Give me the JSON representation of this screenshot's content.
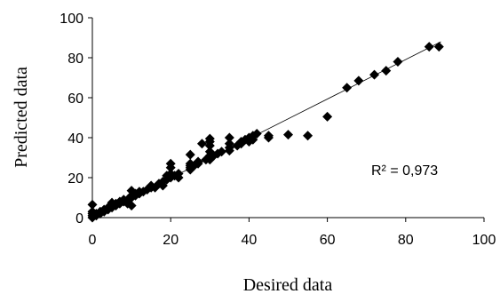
{
  "chart_data": {
    "type": "scatter",
    "xlabel": "Desired data",
    "ylabel": "Predicted data",
    "xlim": [
      0,
      100
    ],
    "ylim": [
      0,
      100
    ],
    "xticks": [
      0,
      20,
      40,
      60,
      80,
      100
    ],
    "yticks": [
      0,
      20,
      40,
      60,
      80,
      100
    ],
    "grid": false,
    "marker": "diamond",
    "marker_color": "#000000",
    "trendline": {
      "x": [
        0,
        89
      ],
      "y": [
        0,
        88
      ]
    },
    "annotation": "R² = 0,973",
    "points": [
      [
        0,
        0
      ],
      [
        0,
        1
      ],
      [
        0,
        2
      ],
      [
        0,
        3
      ],
      [
        0,
        6.5
      ],
      [
        1,
        1
      ],
      [
        1,
        2
      ],
      [
        2,
        2
      ],
      [
        2,
        3
      ],
      [
        3,
        3
      ],
      [
        3,
        4
      ],
      [
        4,
        4
      ],
      [
        4,
        5
      ],
      [
        5,
        5
      ],
      [
        5,
        6
      ],
      [
        5,
        7.5
      ],
      [
        6,
        6
      ],
      [
        6,
        7
      ],
      [
        7,
        7
      ],
      [
        7,
        8
      ],
      [
        8,
        8
      ],
      [
        8,
        9
      ],
      [
        9,
        9
      ],
      [
        9,
        7
      ],
      [
        10,
        10
      ],
      [
        10,
        11
      ],
      [
        10,
        13.5
      ],
      [
        10,
        6
      ],
      [
        11,
        11
      ],
      [
        11,
        12
      ],
      [
        12,
        12
      ],
      [
        12,
        13
      ],
      [
        13,
        13
      ],
      [
        14,
        14
      ],
      [
        15,
        15
      ],
      [
        15,
        16
      ],
      [
        16,
        15
      ],
      [
        17,
        17
      ],
      [
        18,
        18
      ],
      [
        18,
        16
      ],
      [
        19,
        19
      ],
      [
        19,
        21
      ],
      [
        20,
        20
      ],
      [
        20,
        22
      ],
      [
        20,
        25
      ],
      [
        20,
        27
      ],
      [
        21,
        21
      ],
      [
        22,
        22
      ],
      [
        22,
        20
      ],
      [
        25,
        24
      ],
      [
        25,
        25
      ],
      [
        25,
        26
      ],
      [
        25,
        27
      ],
      [
        25,
        31.5
      ],
      [
        26,
        26
      ],
      [
        27,
        27
      ],
      [
        27,
        28
      ],
      [
        28,
        37
      ],
      [
        29,
        29
      ],
      [
        30,
        29
      ],
      [
        30,
        30
      ],
      [
        30,
        31
      ],
      [
        30,
        33
      ],
      [
        30,
        36
      ],
      [
        30,
        38
      ],
      [
        30,
        39.5
      ],
      [
        31,
        31
      ],
      [
        32,
        32
      ],
      [
        33,
        33
      ],
      [
        35,
        33.5
      ],
      [
        35,
        35
      ],
      [
        35,
        37
      ],
      [
        35,
        40
      ],
      [
        37,
        36
      ],
      [
        38,
        37
      ],
      [
        38,
        38
      ],
      [
        39,
        39
      ],
      [
        40,
        38
      ],
      [
        40,
        40
      ],
      [
        41,
        41
      ],
      [
        41,
        39
      ],
      [
        42,
        42
      ],
      [
        45,
        40
      ],
      [
        45,
        41
      ],
      [
        50,
        41.5
      ],
      [
        55,
        41
      ],
      [
        60,
        50.5
      ],
      [
        65,
        65
      ],
      [
        68,
        68.5
      ],
      [
        72,
        71.5
      ],
      [
        75,
        73.5
      ],
      [
        78,
        78
      ],
      [
        86,
        85.5
      ],
      [
        88.5,
        85.5
      ]
    ]
  }
}
